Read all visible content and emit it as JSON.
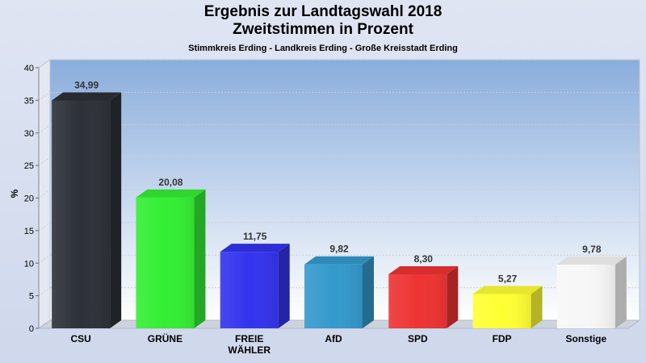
{
  "header": {
    "title_line1": "Ergebnis zur Landtagswahl 2018",
    "title_line2": "Zweitstimmen in Prozent",
    "subtitle": "Stimmkreis Erding - Landkreis Erding - Große Kreisstadt Erding"
  },
  "chart_data": {
    "type": "bar",
    "title": "Ergebnis zur Landtagswahl 2018 Zweitstimmen in Prozent",
    "subtitle": "Stimmkreis Erding - Landkreis Erding - Große Kreisstadt Erding",
    "xlabel": "",
    "ylabel": "%",
    "ylim": [
      0,
      40
    ],
    "yticks": [
      0,
      5,
      10,
      15,
      20,
      25,
      30,
      35,
      40
    ],
    "grid": true,
    "categories": [
      "CSU",
      "GRÜNE",
      "FREIE WÄHLER",
      "AfD",
      "SPD",
      "FDP",
      "Sonstige"
    ],
    "category_lines": [
      [
        "CSU"
      ],
      [
        "GRÜNE"
      ],
      [
        "FREIE",
        "WÄHLER"
      ],
      [
        "AfD"
      ],
      [
        "SPD"
      ],
      [
        "FDP"
      ],
      [
        "Sonstige"
      ]
    ],
    "values": [
      34.99,
      20.08,
      11.75,
      9.82,
      8.3,
      5.27,
      9.78
    ],
    "value_labels": [
      "34,99",
      "20,08",
      "11,75",
      "9,82",
      "8,30",
      "5,27",
      "9,78"
    ],
    "colors": [
      "#2c3038",
      "#33ee33",
      "#3333ee",
      "#3399cc",
      "#ee3333",
      "#ffff33",
      "#f7f7f7"
    ]
  }
}
